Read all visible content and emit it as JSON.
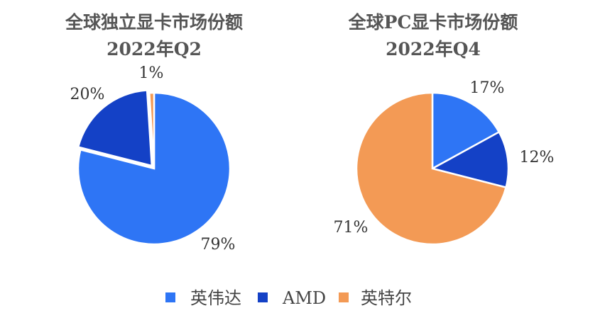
{
  "chart_data": [
    {
      "type": "pie",
      "title": "全球独立显卡市场份额",
      "subtitle": "2022年Q2",
      "categories": [
        "英伟达",
        "AMD",
        "英特尔"
      ],
      "values": [
        79,
        20,
        1
      ],
      "labels": [
        "79%",
        "20%",
        "1%"
      ]
    },
    {
      "type": "pie",
      "title": "全球PC显卡市场份额",
      "subtitle": "2022年Q4",
      "categories": [
        "英伟达",
        "AMD",
        "英特尔"
      ],
      "values": [
        17,
        12,
        71
      ],
      "labels": [
        "17%",
        "12%",
        "71%"
      ]
    }
  ],
  "legend": {
    "placement": "bottom",
    "items": [
      {
        "label": "英伟达",
        "color": "#2E75F5"
      },
      {
        "label": "AMD",
        "color": "#1441C6"
      },
      {
        "label": "英特尔",
        "color": "#F39A55"
      }
    ]
  }
}
